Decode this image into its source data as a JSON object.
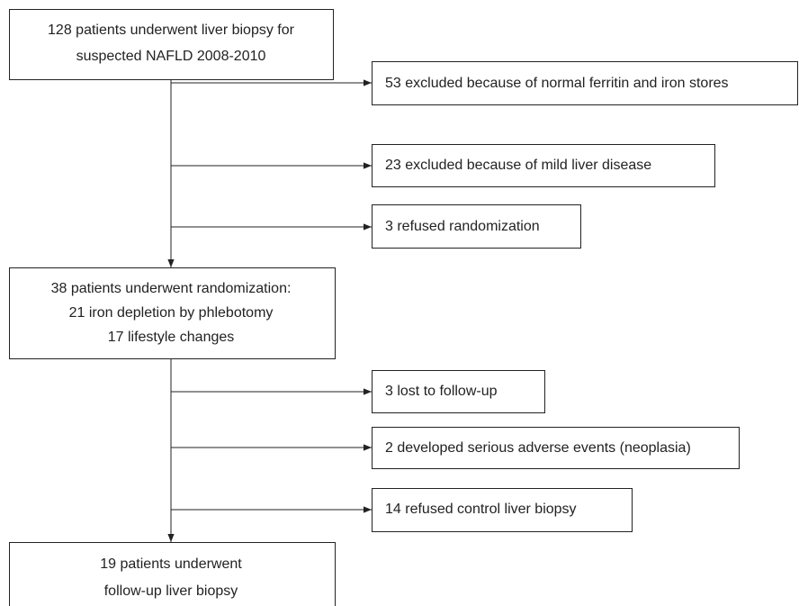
{
  "nodes": [
    {
      "lines": [
        "128 patients underwent liver biopsy for",
        "suspected NAFLD 2008-2010"
      ]
    },
    {
      "lines": [
        "53 excluded because of normal ferritin and iron stores"
      ]
    },
    {
      "lines": [
        "23 excluded because of mild liver disease"
      ]
    },
    {
      "lines": [
        "3 refused randomization"
      ]
    },
    {
      "lines": [
        "38 patients underwent randomization:",
        "21 iron depletion by phlebotomy",
        "17 lifestyle changes"
      ]
    },
    {
      "lines": [
        "3 lost to follow-up"
      ]
    },
    {
      "lines": [
        "2 developed serious adverse events (neoplasia)"
      ]
    },
    {
      "lines": [
        "14 refused control liver biopsy"
      ]
    },
    {
      "lines": [
        "19 patients underwent",
        "follow-up liver biopsy"
      ]
    }
  ]
}
